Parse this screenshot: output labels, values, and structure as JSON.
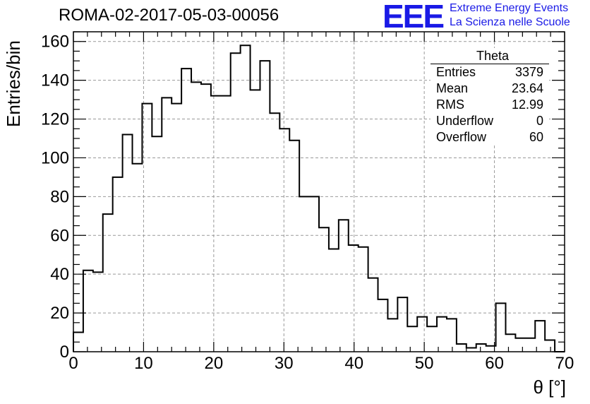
{
  "title": "ROMA-02-2017-05-03-00056",
  "logo": {
    "mark": "EEE",
    "line1": "Extreme Energy Events",
    "line2": "La Scienza nelle Scuole",
    "color": "#1a1ae6"
  },
  "stats_box": {
    "name": "Theta",
    "rows": [
      {
        "label": "Entries",
        "value": "3379"
      },
      {
        "label": "Mean",
        "value": "23.64"
      },
      {
        "label": "RMS",
        "value": "12.99"
      },
      {
        "label": "Underflow",
        "value": "0"
      },
      {
        "label": "Overflow",
        "value": "60"
      }
    ]
  },
  "chart_data": {
    "type": "bar",
    "style": "step-histogram",
    "xlabel": "θ [°]",
    "ylabel": "Entries/bin",
    "xlim": [
      0,
      70
    ],
    "ylim": [
      0,
      165
    ],
    "grid": true,
    "bin_width": 1.4,
    "x_ticks": [
      0,
      10,
      20,
      30,
      40,
      50,
      60,
      70
    ],
    "y_ticks": [
      0,
      20,
      40,
      60,
      80,
      100,
      120,
      140,
      160
    ],
    "values": [
      10,
      42,
      41,
      71,
      90,
      112,
      97,
      128,
      111,
      131,
      128,
      146,
      139,
      138,
      132,
      132,
      154,
      158,
      135,
      150,
      123,
      115,
      109,
      80,
      80,
      64,
      53,
      68,
      55,
      54,
      38,
      27,
      17,
      28,
      13,
      18,
      13,
      18,
      17,
      4,
      2,
      4,
      3,
      25,
      9,
      7,
      7,
      16,
      6,
      0
    ]
  }
}
